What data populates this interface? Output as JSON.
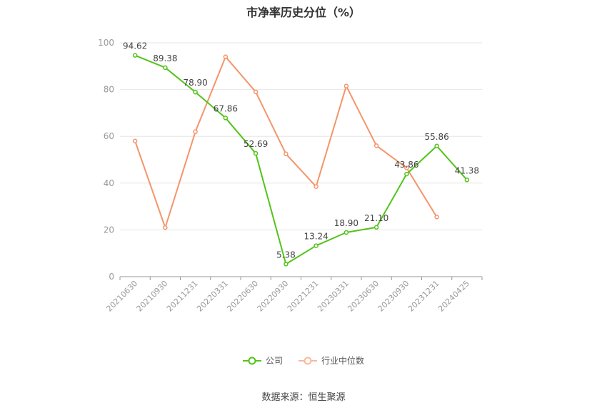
{
  "chart_data": {
    "type": "line",
    "title": "市净率历史分位（%）",
    "categories": [
      "20210630",
      "20210930",
      "20211231",
      "20220331",
      "20220630",
      "20220930",
      "20221231",
      "20230331",
      "20230630",
      "20230930",
      "20231231",
      "20240425"
    ],
    "ylim": [
      0,
      100
    ],
    "yticks": [
      0,
      20,
      40,
      60,
      80,
      100
    ],
    "grid": true,
    "legend_position": "bottom",
    "series": [
      {
        "name": "公司",
        "color": "#52c41a",
        "values": [
          94.62,
          89.38,
          78.9,
          67.86,
          52.69,
          5.38,
          13.24,
          18.9,
          21.1,
          43.86,
          55.86,
          41.38
        ],
        "labels": [
          "94.62",
          "89.38",
          "78.90",
          "67.86",
          "52.69",
          "5.38",
          "13.24",
          "18.90",
          "21.10",
          "43.86",
          "55.86",
          "41.38"
        ]
      },
      {
        "name": "行业中位数",
        "color": "#f4956a",
        "values": [
          58,
          21,
          62,
          94,
          79,
          52.5,
          38.5,
          81.5,
          56,
          46.5,
          25.5,
          null
        ]
      }
    ]
  },
  "source_text": "数据来源：恒生聚源"
}
